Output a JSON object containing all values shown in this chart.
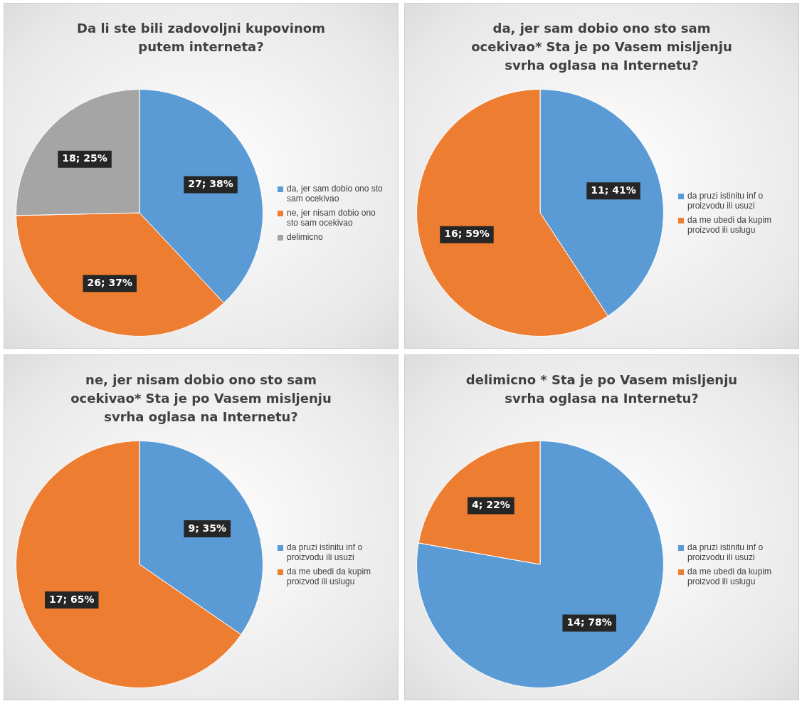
{
  "chart_data": [
    {
      "type": "pie",
      "title": "Da li ste bili zadovoljni kupovinom putem interneta?",
      "categories": [
        "da, jer sam dobio ono sto sam ocekivao",
        "ne, jer nisam dobio ono sto sam ocekivao",
        "delimicno"
      ],
      "values": [
        27,
        26,
        18
      ],
      "colors": [
        "#5b9bd5",
        "#ed7d31",
        "#a5a5a5"
      ],
      "value_labels": [
        "27; 38%",
        "26; 37%",
        "18; 25%"
      ],
      "legend": "right"
    },
    {
      "type": "pie",
      "title": "da, jer sam dobio ono sto sam ocekivao* Sta je po Vasem misljenju svrha oglasa na Internetu?",
      "categories": [
        "da pruzi istinitu inf o proizvodu ili usuzi",
        "da me ubedi da kupim proizvod ili uslugu"
      ],
      "values": [
        11,
        16
      ],
      "colors": [
        "#5b9bd5",
        "#ed7d31"
      ],
      "value_labels": [
        "11; 41%",
        "16; 59%"
      ],
      "legend": "right"
    },
    {
      "type": "pie",
      "title": "ne, jer nisam dobio ono sto sam ocekivao* Sta je po Vasem misljenju svrha oglasa na Internetu?",
      "categories": [
        "da pruzi istinitu inf o proizvodu ili usuzi",
        "da me ubedi da kupim proizvod ili uslugu"
      ],
      "values": [
        9,
        17
      ],
      "colors": [
        "#5b9bd5",
        "#ed7d31"
      ],
      "value_labels": [
        "9; 35%",
        "17; 65%"
      ],
      "legend": "right"
    },
    {
      "type": "pie",
      "title": "delimicno * Sta je po Vasem misljenju svrha oglasa na Internetu?",
      "categories": [
        "da pruzi istinitu inf o proizvodu ili usuzi",
        "da me ubedi da kupim proizvod ili uslugu"
      ],
      "values": [
        14,
        4
      ],
      "colors": [
        "#5b9bd5",
        "#ed7d31"
      ],
      "value_labels": [
        "14; 78%",
        "4; 22%"
      ],
      "legend": "right"
    }
  ]
}
